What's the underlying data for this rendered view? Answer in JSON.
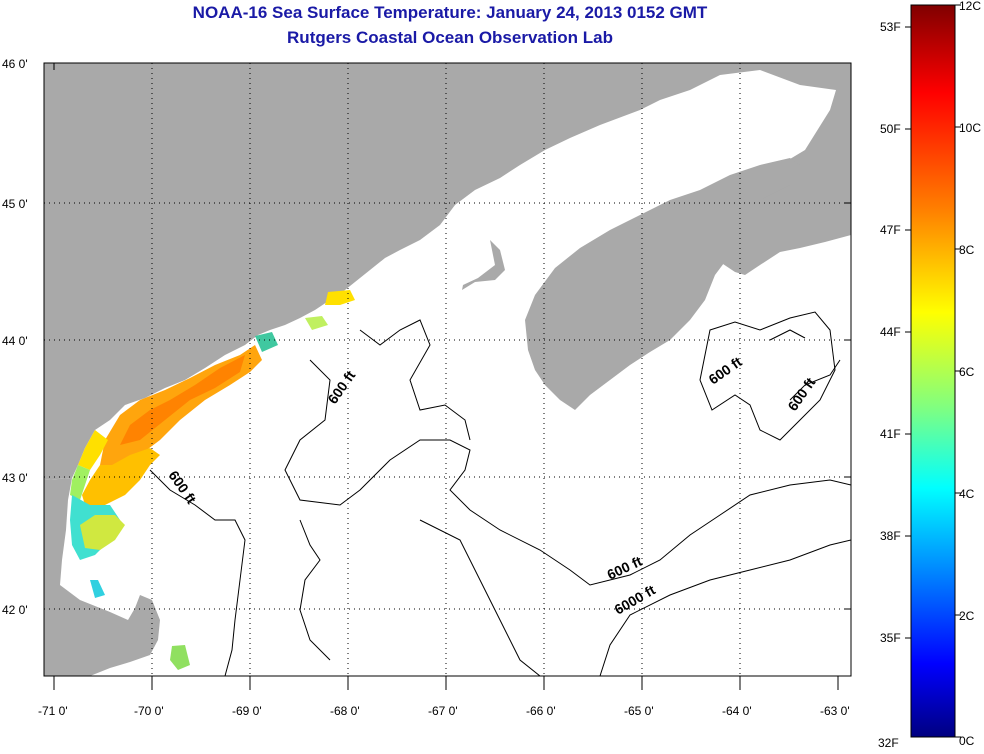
{
  "title": {
    "line1": "NOAA-16 Sea Surface Temperature:  January 24, 2013 0152 GMT",
    "line2": "Rutgers Coastal Ocean Observation Lab"
  },
  "map": {
    "lon_range": [
      -71.1,
      -63
    ],
    "lat_range": [
      41.5,
      46
    ],
    "lon_ticks": [
      "-71 0'",
      "-70 0'",
      "-69 0'",
      "-68 0'",
      "-67 0'",
      "-66 0'",
      "-65 0'",
      "-64 0'",
      "-63 0'"
    ],
    "lat_ticks": [
      "46 0'",
      "45 0'",
      "44 0'",
      "43 0'",
      "42 0'"
    ],
    "land_color": "#a9a9a9",
    "contour_labels": [
      "600 ft",
      "600 ft",
      "600 ft",
      "600 ft",
      "600 ft",
      "6000 ft"
    ]
  },
  "colorbar": {
    "f_labels": [
      "53F",
      "50F",
      "47F",
      "44F",
      "41F",
      "38F",
      "35F",
      "32F"
    ],
    "c_labels": [
      "12C",
      "10C",
      "8C",
      "6C",
      "4C",
      "2C",
      "0C"
    ],
    "colors": [
      "#800000",
      "#ff0000",
      "#ff8000",
      "#ffff00",
      "#80ff80",
      "#00ffff",
      "#0080ff",
      "#0000ff",
      "#000080"
    ]
  }
}
